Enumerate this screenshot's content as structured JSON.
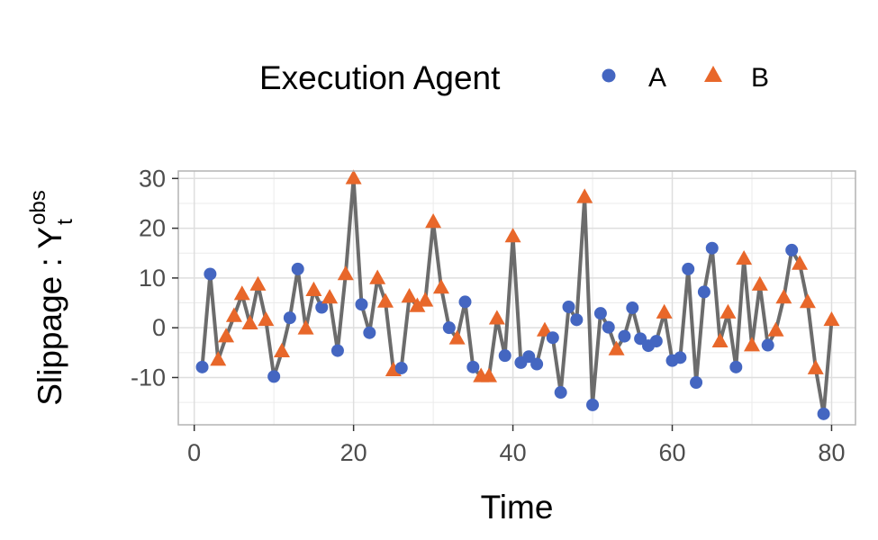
{
  "chart_data": {
    "type": "scatter",
    "title": "",
    "xlabel": "Time",
    "ylabel": {
      "main": "Slippage : Y",
      "superscript": "obs",
      "subscript": "t"
    },
    "xlim": [
      -2,
      83
    ],
    "ylim": [
      -19.5,
      31.5
    ],
    "xticks": [
      0,
      20,
      40,
      60,
      80
    ],
    "yticks": [
      -10,
      0,
      10,
      20,
      30
    ],
    "grid": true,
    "legend": {
      "title": "Execution Agent",
      "placement": "top",
      "entries": [
        "A",
        "B"
      ]
    },
    "colors": {
      "A": "#4466c1",
      "B": "#e8672a",
      "line": "#5c5c5c"
    },
    "points": [
      {
        "x": 1,
        "y": -7.9,
        "agent": "A"
      },
      {
        "x": 2,
        "y": 10.8,
        "agent": "A"
      },
      {
        "x": 3,
        "y": -6.5,
        "agent": "B"
      },
      {
        "x": 4,
        "y": -1.8,
        "agent": "B"
      },
      {
        "x": 5,
        "y": 2.3,
        "agent": "B"
      },
      {
        "x": 6,
        "y": 6.7,
        "agent": "B"
      },
      {
        "x": 7,
        "y": 0.8,
        "agent": "B"
      },
      {
        "x": 8,
        "y": 8.6,
        "agent": "B"
      },
      {
        "x": 9,
        "y": 1.5,
        "agent": "B"
      },
      {
        "x": 10,
        "y": -9.8,
        "agent": "A"
      },
      {
        "x": 11,
        "y": -4.8,
        "agent": "B"
      },
      {
        "x": 12,
        "y": 2.0,
        "agent": "A"
      },
      {
        "x": 13,
        "y": 11.8,
        "agent": "A"
      },
      {
        "x": 14,
        "y": -0.2,
        "agent": "B"
      },
      {
        "x": 15,
        "y": 7.5,
        "agent": "B"
      },
      {
        "x": 16,
        "y": 4.1,
        "agent": "A"
      },
      {
        "x": 17,
        "y": 6.0,
        "agent": "B"
      },
      {
        "x": 18,
        "y": -4.6,
        "agent": "A"
      },
      {
        "x": 19,
        "y": 10.7,
        "agent": "B"
      },
      {
        "x": 20,
        "y": 30.0,
        "agent": "B"
      },
      {
        "x": 21,
        "y": 4.7,
        "agent": "A"
      },
      {
        "x": 22,
        "y": -1.0,
        "agent": "A"
      },
      {
        "x": 23,
        "y": 9.9,
        "agent": "B"
      },
      {
        "x": 24,
        "y": 5.2,
        "agent": "B"
      },
      {
        "x": 25,
        "y": -8.6,
        "agent": "B"
      },
      {
        "x": 26,
        "y": -8.1,
        "agent": "A"
      },
      {
        "x": 27,
        "y": 6.2,
        "agent": "B"
      },
      {
        "x": 28,
        "y": 4.3,
        "agent": "B"
      },
      {
        "x": 29,
        "y": 5.4,
        "agent": "B"
      },
      {
        "x": 30,
        "y": 21.2,
        "agent": "B"
      },
      {
        "x": 31,
        "y": 8.0,
        "agent": "B"
      },
      {
        "x": 32,
        "y": 0.0,
        "agent": "A"
      },
      {
        "x": 33,
        "y": -2.2,
        "agent": "B"
      },
      {
        "x": 34,
        "y": 5.2,
        "agent": "A"
      },
      {
        "x": 35,
        "y": -7.9,
        "agent": "A"
      },
      {
        "x": 36,
        "y": -9.8,
        "agent": "B"
      },
      {
        "x": 37,
        "y": -9.8,
        "agent": "B"
      },
      {
        "x": 38,
        "y": 1.8,
        "agent": "B"
      },
      {
        "x": 39,
        "y": -5.6,
        "agent": "A"
      },
      {
        "x": 40,
        "y": 18.3,
        "agent": "B"
      },
      {
        "x": 41,
        "y": -7.0,
        "agent": "A"
      },
      {
        "x": 42,
        "y": -5.8,
        "agent": "A"
      },
      {
        "x": 43,
        "y": -7.3,
        "agent": "A"
      },
      {
        "x": 44,
        "y": -0.6,
        "agent": "B"
      },
      {
        "x": 45,
        "y": -2.0,
        "agent": "A"
      },
      {
        "x": 46,
        "y": -13.0,
        "agent": "A"
      },
      {
        "x": 47,
        "y": 4.2,
        "agent": "A"
      },
      {
        "x": 48,
        "y": 1.6,
        "agent": "A"
      },
      {
        "x": 49,
        "y": 26.2,
        "agent": "B"
      },
      {
        "x": 50,
        "y": -15.5,
        "agent": "A"
      },
      {
        "x": 51,
        "y": 2.9,
        "agent": "A"
      },
      {
        "x": 52,
        "y": 0.1,
        "agent": "A"
      },
      {
        "x": 53,
        "y": -4.4,
        "agent": "B"
      },
      {
        "x": 54,
        "y": -1.7,
        "agent": "A"
      },
      {
        "x": 55,
        "y": 4.0,
        "agent": "A"
      },
      {
        "x": 56,
        "y": -2.2,
        "agent": "A"
      },
      {
        "x": 57,
        "y": -3.6,
        "agent": "A"
      },
      {
        "x": 58,
        "y": -2.7,
        "agent": "A"
      },
      {
        "x": 59,
        "y": 3.0,
        "agent": "B"
      },
      {
        "x": 60,
        "y": -6.6,
        "agent": "A"
      },
      {
        "x": 61,
        "y": -6.0,
        "agent": "A"
      },
      {
        "x": 62,
        "y": 11.8,
        "agent": "A"
      },
      {
        "x": 63,
        "y": -11.0,
        "agent": "A"
      },
      {
        "x": 64,
        "y": 7.2,
        "agent": "A"
      },
      {
        "x": 65,
        "y": 16.0,
        "agent": "A"
      },
      {
        "x": 66,
        "y": -2.8,
        "agent": "B"
      },
      {
        "x": 67,
        "y": 3.0,
        "agent": "B"
      },
      {
        "x": 68,
        "y": -7.9,
        "agent": "A"
      },
      {
        "x": 69,
        "y": 13.8,
        "agent": "B"
      },
      {
        "x": 70,
        "y": -3.6,
        "agent": "B"
      },
      {
        "x": 71,
        "y": 8.6,
        "agent": "B"
      },
      {
        "x": 72,
        "y": -3.5,
        "agent": "A"
      },
      {
        "x": 73,
        "y": -0.6,
        "agent": "B"
      },
      {
        "x": 74,
        "y": 6.0,
        "agent": "B"
      },
      {
        "x": 75,
        "y": 15.6,
        "agent": "A"
      },
      {
        "x": 76,
        "y": 12.8,
        "agent": "B"
      },
      {
        "x": 77,
        "y": 5.1,
        "agent": "B"
      },
      {
        "x": 78,
        "y": -8.2,
        "agent": "B"
      },
      {
        "x": 79,
        "y": -17.3,
        "agent": "A"
      },
      {
        "x": 80,
        "y": 1.5,
        "agent": "B"
      }
    ]
  }
}
